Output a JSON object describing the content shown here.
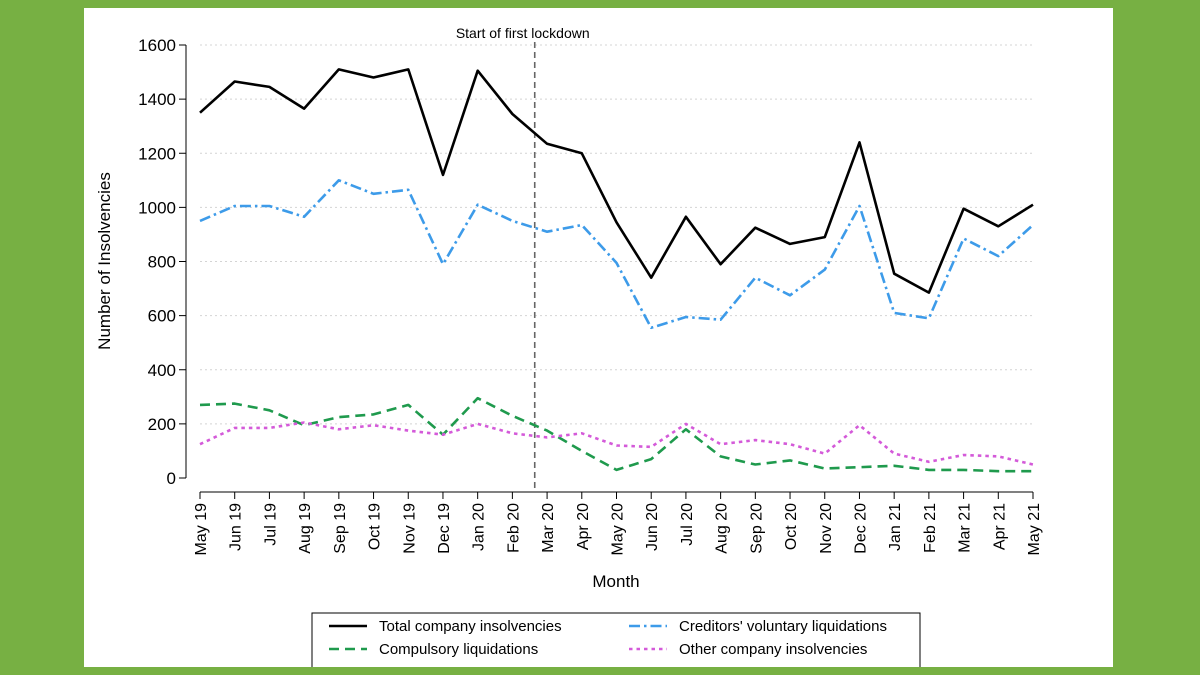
{
  "chart_data": {
    "type": "line",
    "title": "",
    "xlabel": "Month",
    "ylabel": "Number of Insolvencies",
    "ylim": [
      0,
      1600
    ],
    "yticks": [
      0,
      200,
      400,
      600,
      800,
      1000,
      1200,
      1400,
      1600
    ],
    "grid": "horizontal dotted",
    "categories": [
      "May 19",
      "Jun 19",
      "Jul 19",
      "Aug 19",
      "Sep 19",
      "Oct 19",
      "Nov 19",
      "Dec 19",
      "Jan 20",
      "Feb 20",
      "Mar 20",
      "Apr 20",
      "May 20",
      "Jun 20",
      "Jul 20",
      "Aug 20",
      "Sep 20",
      "Oct 20",
      "Nov 20",
      "Dec 20",
      "Jan 21",
      "Feb 21",
      "Mar 21",
      "Apr 21",
      "May 21"
    ],
    "annotation": {
      "text": "Start of first lockdown",
      "between": [
        "Feb 20",
        "Mar 20"
      ]
    },
    "legend_position": "bottom",
    "series": [
      {
        "name": "Total company insolvencies",
        "color": "#000000",
        "dash": "solid",
        "values": [
          1350,
          1465,
          1445,
          1365,
          1510,
          1480,
          1510,
          1120,
          1505,
          1345,
          1235,
          1200,
          945,
          740,
          965,
          790,
          925,
          865,
          890,
          1240,
          755,
          685,
          995,
          930,
          1010
        ]
      },
      {
        "name": "Creditors' voluntary liquidations",
        "color": "#3d9be9",
        "dash": "dashdot",
        "values": [
          950,
          1005,
          1005,
          965,
          1100,
          1050,
          1065,
          790,
          1010,
          950,
          910,
          935,
          795,
          555,
          595,
          585,
          740,
          675,
          770,
          1005,
          610,
          590,
          885,
          820,
          935
        ]
      },
      {
        "name": "Compulsory liquidations",
        "color": "#1f9a4d",
        "dash": "dashed",
        "values": [
          270,
          275,
          250,
          195,
          225,
          235,
          270,
          160,
          295,
          230,
          175,
          100,
          30,
          70,
          180,
          80,
          50,
          65,
          35,
          40,
          45,
          30,
          30,
          25,
          25
        ]
      },
      {
        "name": "Other company insolvencies",
        "color": "#d45ad9",
        "dash": "dotted",
        "values": [
          125,
          185,
          185,
          205,
          180,
          195,
          175,
          160,
          200,
          165,
          150,
          165,
          120,
          115,
          200,
          125,
          140,
          125,
          90,
          195,
          90,
          60,
          85,
          80,
          50
        ]
      }
    ]
  }
}
